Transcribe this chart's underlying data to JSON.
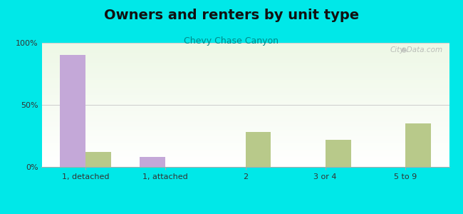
{
  "title": "Owners and renters by unit type",
  "subtitle": "Chevy Chase Canyon",
  "categories": [
    "1, detached",
    "1, attached",
    "2",
    "3 or 4",
    "5 to 9"
  ],
  "owner_values": [
    90,
    8,
    0,
    0,
    0
  ],
  "renter_values": [
    12,
    0,
    28,
    22,
    35
  ],
  "owner_color": "#c4a8d8",
  "renter_color": "#b8c98a",
  "background_outer": "#00e8e8",
  "bar_width": 0.32,
  "ylim": [
    0,
    100
  ],
  "yticks": [
    0,
    50,
    100
  ],
  "ytick_labels": [
    "0%",
    "50%",
    "100%"
  ],
  "title_fontsize": 14,
  "subtitle_fontsize": 9,
  "subtitle_color": "#008888",
  "watermark": "City-Data.com"
}
